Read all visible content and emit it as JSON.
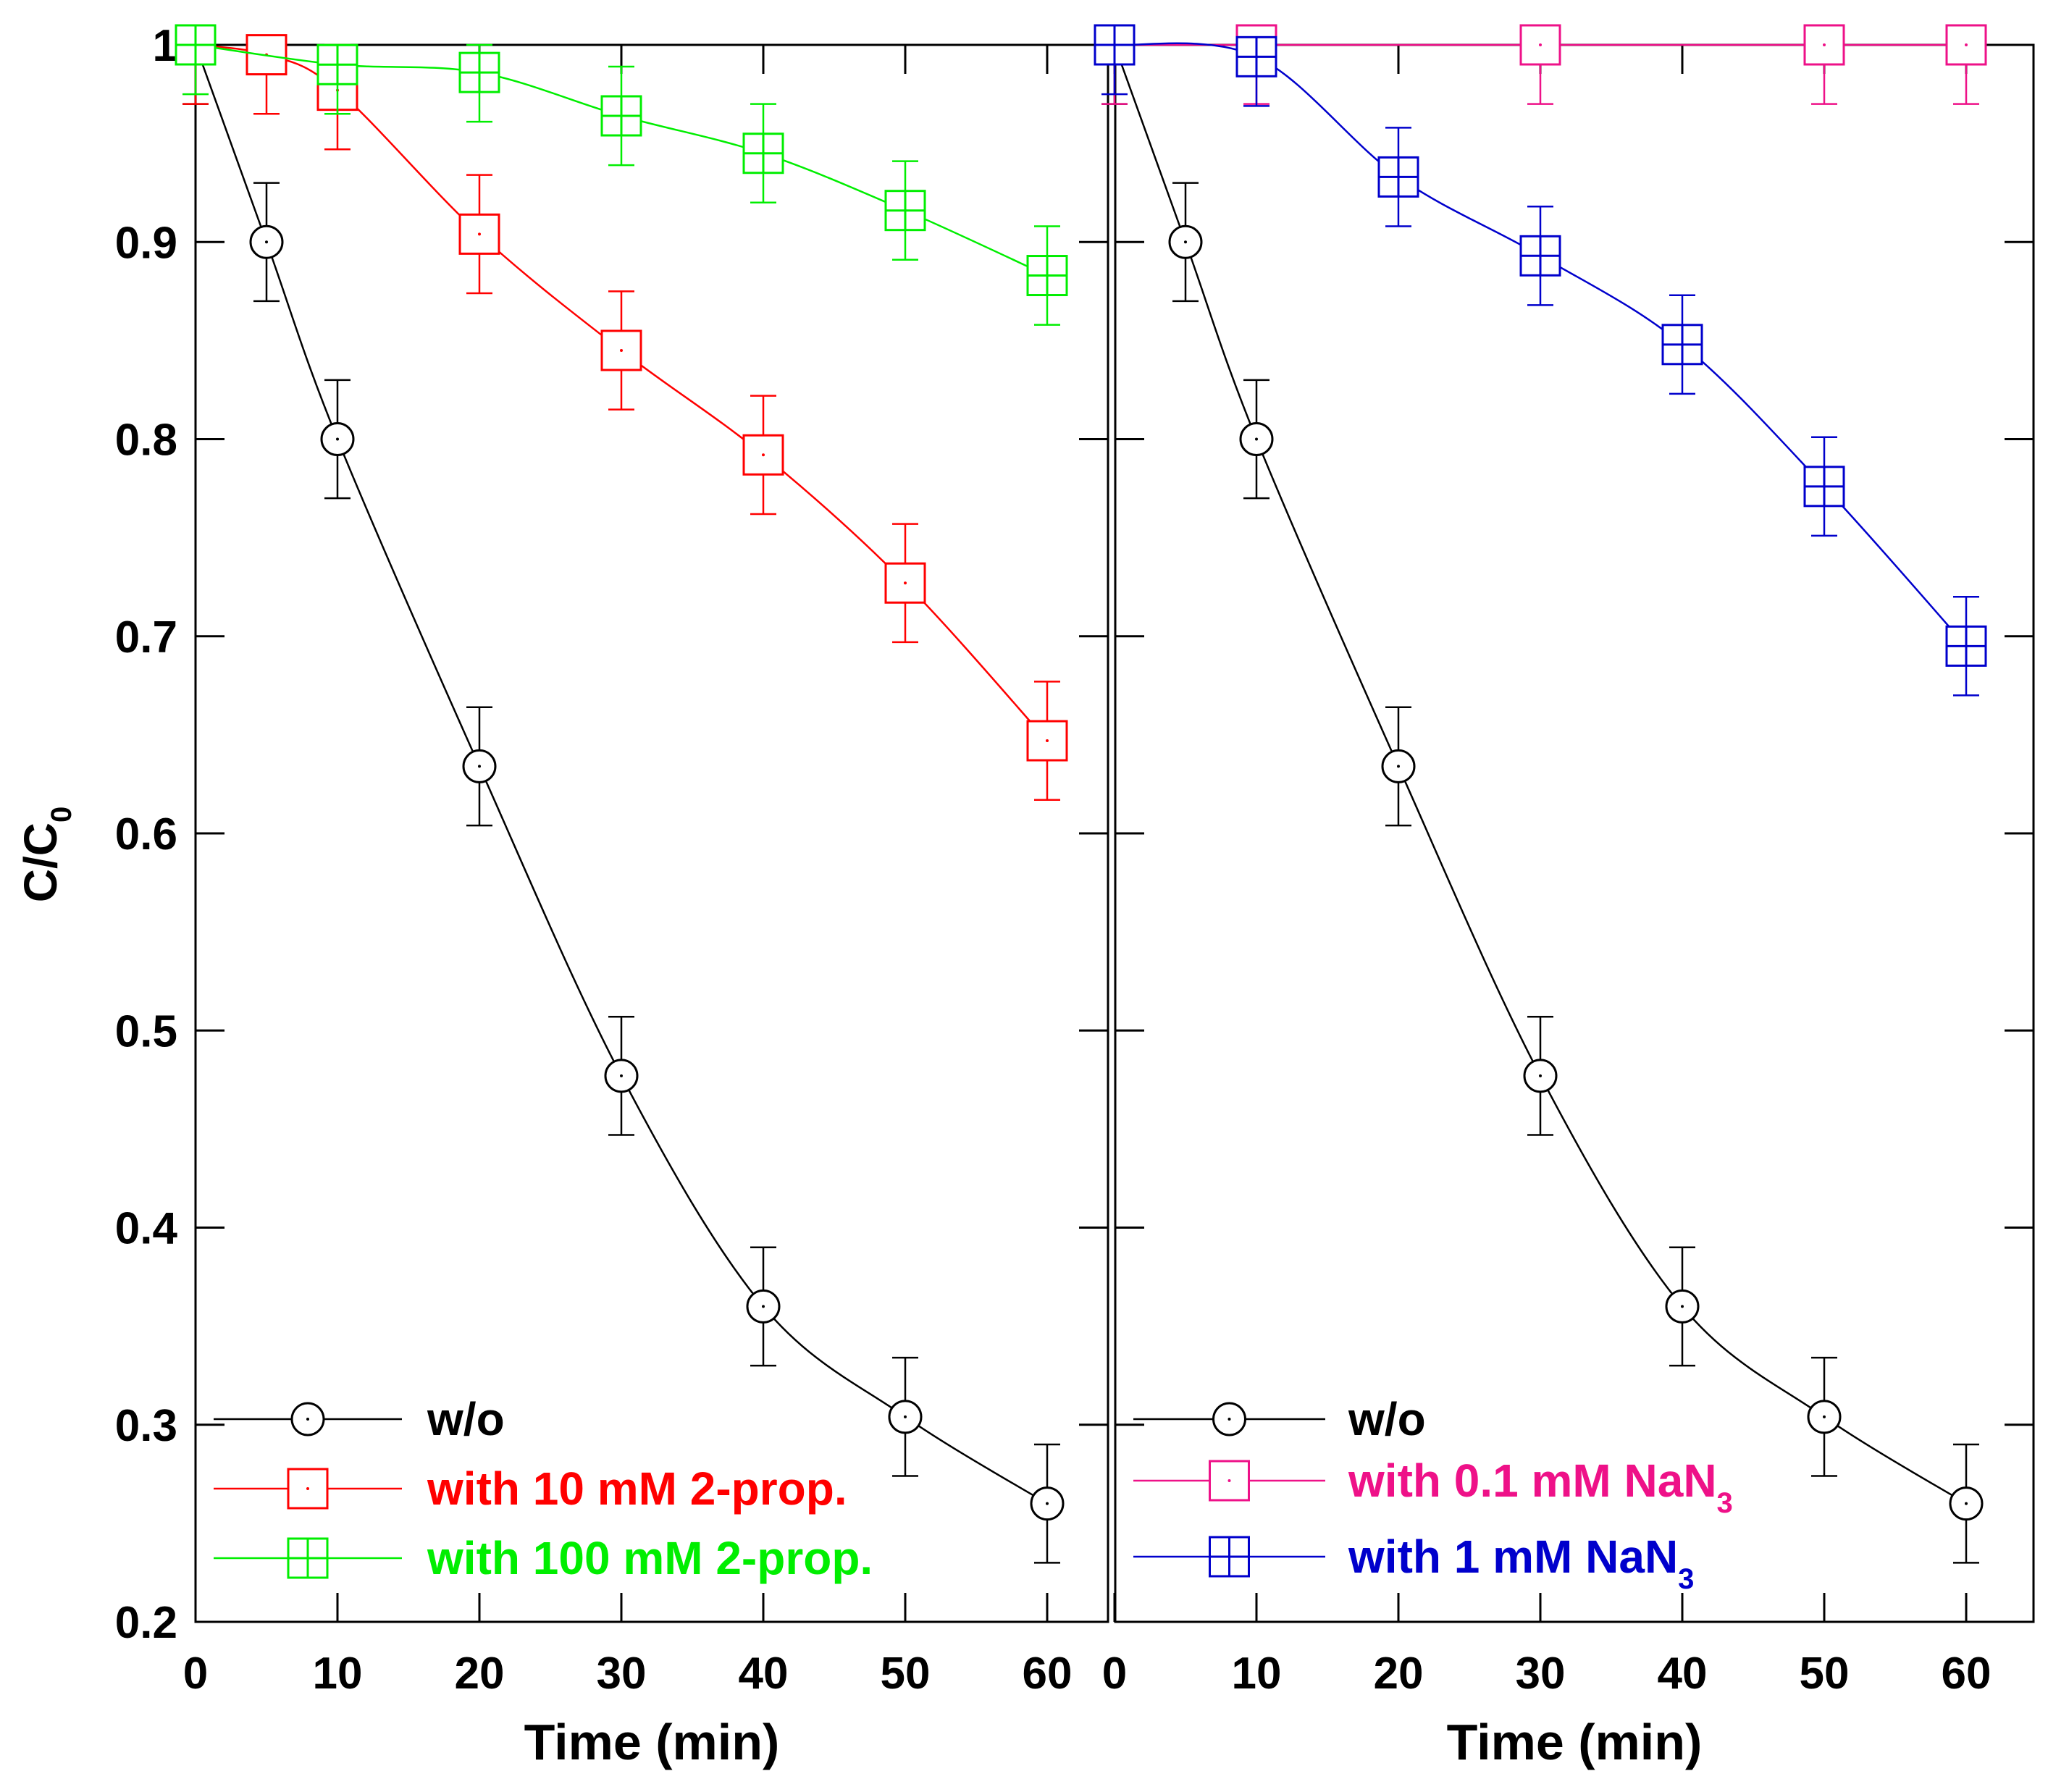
{
  "figure": {
    "ylabel_main": "C/C",
    "ylabel_sub": "0",
    "xlabel": "Time (min)"
  },
  "chart_data": [
    {
      "type": "line",
      "panel": "left",
      "xlabel": "Time (min)",
      "ylabel": "C/C0",
      "xlim": [
        0,
        62
      ],
      "ylim": [
        0.2,
        1.0
      ],
      "xticks": [
        0,
        10,
        20,
        30,
        40,
        50,
        60
      ],
      "yticks": [
        0.2,
        0.3,
        0.4,
        0.5,
        0.6,
        0.7,
        0.8,
        0.9,
        1.0
      ],
      "ytick_labels": [
        "0.2",
        "0.3",
        "0.4",
        "0.5",
        "0.6",
        "0.7",
        "0.8",
        "0.9",
        "1"
      ],
      "legend_position": "bottom-left",
      "series": [
        {
          "name": "w/o",
          "marker": "circle",
          "color": "#000000",
          "x": [
            0,
            5,
            10,
            20,
            30,
            40,
            50,
            60
          ],
          "y": [
            1.0,
            0.9,
            0.8,
            0.634,
            0.477,
            0.36,
            0.304,
            0.26
          ],
          "error": [
            0.03,
            0.03,
            0.03,
            0.03,
            0.03,
            0.03,
            0.03,
            0.03
          ]
        },
        {
          "name": "with 10 mM 2-prop.",
          "marker": "square",
          "color": "#ff0000",
          "x": [
            0,
            5,
            10,
            20,
            30,
            40,
            50,
            60
          ],
          "y": [
            1.0,
            0.995,
            0.977,
            0.904,
            0.845,
            0.792,
            0.727,
            0.647
          ],
          "error": [
            0.03,
            0.03,
            0.03,
            0.03,
            0.03,
            0.03,
            0.03,
            0.03
          ]
        },
        {
          "name": "with 100 mM 2-prop.",
          "marker": "square-plus",
          "color": "#00ee00",
          "x": [
            0,
            10,
            20,
            30,
            40,
            50,
            60
          ],
          "y": [
            1.0,
            0.99,
            0.986,
            0.964,
            0.945,
            0.916,
            0.883
          ],
          "error": [
            0.025,
            0.025,
            0.025,
            0.025,
            0.025,
            0.025,
            0.025
          ]
        }
      ]
    },
    {
      "type": "line",
      "panel": "right",
      "xlabel": "Time (min)",
      "ylabel": "C/C0",
      "xlim": [
        0,
        65
      ],
      "ylim": [
        0.2,
        1.0
      ],
      "xticks": [
        0,
        10,
        20,
        30,
        40,
        50,
        60
      ],
      "yticks": [
        0.2,
        0.3,
        0.4,
        0.5,
        0.6,
        0.7,
        0.8,
        0.9,
        1.0
      ],
      "legend_position": "bottom-left",
      "series": [
        {
          "name": "w/o",
          "marker": "circle",
          "color": "#000000",
          "x": [
            0,
            5,
            10,
            20,
            30,
            40,
            50,
            60
          ],
          "y": [
            1.0,
            0.9,
            0.8,
            0.634,
            0.477,
            0.36,
            0.304,
            0.26
          ],
          "error": [
            0.03,
            0.03,
            0.03,
            0.03,
            0.03,
            0.03,
            0.03,
            0.03
          ]
        },
        {
          "name_main": "with 0.1 mM NaN",
          "name_sub": "3",
          "marker": "square",
          "color": "#ee1188",
          "x": [
            0,
            10,
            30,
            50,
            60
          ],
          "y": [
            1.0,
            1.0,
            1.0,
            1.0,
            1.0
          ],
          "error": [
            0.03,
            0.03,
            0.03,
            0.03,
            0.03
          ]
        },
        {
          "name_main": "with 1 mM NaN",
          "name_sub": "3",
          "marker": "square-plus",
          "color": "#0000cc",
          "x": [
            0,
            10,
            20,
            30,
            40,
            50,
            60
          ],
          "y": [
            1.0,
            0.994,
            0.933,
            0.893,
            0.848,
            0.776,
            0.695
          ],
          "error": [
            0.025,
            0.025,
            0.025,
            0.025,
            0.025,
            0.025,
            0.025
          ]
        }
      ]
    }
  ]
}
